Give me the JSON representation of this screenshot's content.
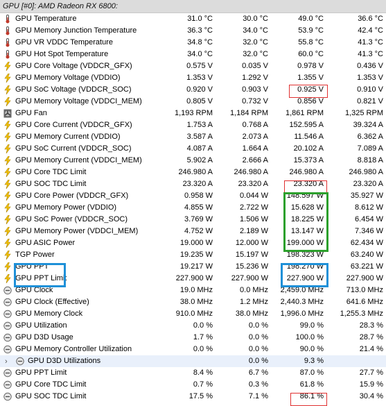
{
  "header": {
    "title": "GPU [#0]: AMD Radeon RX 6800:"
  },
  "rows": [
    {
      "icon": "thermometer-icon",
      "label": "GPU Temperature",
      "v": [
        "31.0 °C",
        "30.0 °C",
        "49.0 °C",
        "36.6 °C"
      ]
    },
    {
      "icon": "thermometer-icon",
      "label": "GPU Memory Junction Temperature",
      "v": [
        "36.3 °C",
        "34.0 °C",
        "53.9 °C",
        "42.4 °C"
      ]
    },
    {
      "icon": "thermometer-icon",
      "label": "GPU VR VDDC Temperature",
      "v": [
        "34.8 °C",
        "32.0 °C",
        "55.8 °C",
        "41.3 °C"
      ]
    },
    {
      "icon": "thermometer-icon",
      "label": "GPU Hot Spot Temperature",
      "v": [
        "34.0 °C",
        "32.0 °C",
        "60.0 °C",
        "41.3 °C"
      ]
    },
    {
      "icon": "lightning-icon",
      "label": "GPU Core Voltage (VDDCR_GFX)",
      "v": [
        "0.575 V",
        "0.035 V",
        "0.978 V",
        "0.436 V"
      ]
    },
    {
      "icon": "lightning-icon",
      "label": "GPU Memory Voltage (VDDIO)",
      "v": [
        "1.353 V",
        "1.292 V",
        "1.355 V",
        "1.353 V"
      ]
    },
    {
      "icon": "lightning-icon",
      "label": "GPU SoC Voltage (VDDCR_SOC)",
      "v": [
        "0.920 V",
        "0.903 V",
        "0.925 V",
        "0.910 V"
      ]
    },
    {
      "icon": "lightning-icon",
      "label": "GPU Memory Voltage (VDDCI_MEM)",
      "v": [
        "0.805 V",
        "0.732 V",
        "0.856 V",
        "0.821 V"
      ]
    },
    {
      "icon": "fan-icon",
      "label": "GPU Fan",
      "v": [
        "1,193 RPM",
        "1,184 RPM",
        "1,861 RPM",
        "1,325 RPM"
      ]
    },
    {
      "icon": "lightning-icon",
      "label": "GPU Core Current (VDDCR_GFX)",
      "v": [
        "1.753 A",
        "0.768 A",
        "152.595 A",
        "39.324 A"
      ]
    },
    {
      "icon": "lightning-icon",
      "label": "GPU Memory Current (VDDIO)",
      "v": [
        "3.587 A",
        "2.073 A",
        "11.546 A",
        "6.362 A"
      ]
    },
    {
      "icon": "lightning-icon",
      "label": "GPU SoC Current (VDDCR_SOC)",
      "v": [
        "4.087 A",
        "1.664 A",
        "20.102 A",
        "7.089 A"
      ]
    },
    {
      "icon": "lightning-icon",
      "label": "GPU Memory Current (VDDCI_MEM)",
      "v": [
        "5.902 A",
        "2.666 A",
        "15.373 A",
        "8.818 A"
      ]
    },
    {
      "icon": "lightning-icon",
      "label": "GPU Core TDC Limit",
      "v": [
        "246.980 A",
        "246.980 A",
        "246.980 A",
        "246.980 A"
      ]
    },
    {
      "icon": "lightning-icon",
      "label": "GPU SOC TDC Limit",
      "v": [
        "23.320 A",
        "23.320 A",
        "23.320 A",
        "23.320 A"
      ]
    },
    {
      "icon": "lightning-icon",
      "label": "GPU Core Power (VDDCR_GFX)",
      "v": [
        "0.958 W",
        "0.044 W",
        "148.597 W",
        "35.927 W"
      ]
    },
    {
      "icon": "lightning-icon",
      "label": "GPU Memory Power (VDDIO)",
      "v": [
        "4.855 W",
        "2.722 W",
        "15.628 W",
        "8.612 W"
      ]
    },
    {
      "icon": "lightning-icon",
      "label": "GPU SoC Power (VDDCR_SOC)",
      "v": [
        "3.769 W",
        "1.506 W",
        "18.225 W",
        "6.454 W"
      ]
    },
    {
      "icon": "lightning-icon",
      "label": "GPU Memory Power (VDDCI_MEM)",
      "v": [
        "4.752 W",
        "2.189 W",
        "13.147 W",
        "7.346 W"
      ]
    },
    {
      "icon": "lightning-icon",
      "label": "GPU ASIC Power",
      "v": [
        "19.000 W",
        "12.000 W",
        "199.000 W",
        "62.434 W"
      ]
    },
    {
      "icon": "lightning-icon",
      "label": "TGP Power",
      "v": [
        "19.235 W",
        "15.197 W",
        "198.323 W",
        "63.240 W"
      ]
    },
    {
      "icon": "lightning-icon",
      "label": "GPU PPT",
      "v": [
        "19.217 W",
        "15.236 W",
        "198.270 W",
        "63.221 W"
      ]
    },
    {
      "icon": "lightning-icon",
      "label": "GPU PPT Limit",
      "v": [
        "227.900 W",
        "227.900 W",
        "227.900 W",
        "227.900 W"
      ]
    },
    {
      "icon": "clock-icon",
      "label": "GPU Clock",
      "v": [
        "19.0 MHz",
        "0.0 MHz",
        "2,459.0 MHz",
        "713.0 MHz"
      ]
    },
    {
      "icon": "clock-icon",
      "label": "GPU Clock (Effective)",
      "v": [
        "38.0 MHz",
        "1.2 MHz",
        "2,440.3 MHz",
        "641.6 MHz"
      ]
    },
    {
      "icon": "clock-icon",
      "label": "GPU Memory Clock",
      "v": [
        "910.0 MHz",
        "38.0 MHz",
        "1,996.0 MHz",
        "1,255.3 MHz"
      ]
    },
    {
      "icon": "gauge-icon",
      "label": "GPU Utilization",
      "v": [
        "0.0 %",
        "0.0 %",
        "99.0 %",
        "28.3 %"
      ]
    },
    {
      "icon": "gauge-icon",
      "label": "GPU D3D Usage",
      "v": [
        "1.7 %",
        "0.0 %",
        "100.0 %",
        "28.7 %"
      ]
    },
    {
      "icon": "gauge-icon",
      "label": "GPU Memory Controller Utilization",
      "v": [
        "0.0 %",
        "0.0 %",
        "90.0 %",
        "21.4 %"
      ]
    },
    {
      "icon": "gauge-icon",
      "label": "GPU D3D Utilizations",
      "v": [
        "",
        "0.0 %",
        "9.3 %",
        ""
      ],
      "child": true,
      "twisty": "›"
    },
    {
      "icon": "gauge-icon",
      "label": "GPU PPT Limit",
      "v": [
        "8.4 %",
        "6.7 %",
        "87.0 %",
        "27.7 %"
      ]
    },
    {
      "icon": "gauge-icon",
      "label": "GPU Core TDC Limit",
      "v": [
        "0.7 %",
        "0.3 %",
        "61.8 %",
        "15.9 %"
      ]
    },
    {
      "icon": "gauge-icon",
      "label": "GPU SOC TDC Limit",
      "v": [
        "17.5 %",
        "7.1 %",
        "86.1 %",
        "30.4 %"
      ]
    }
  ],
  "colors": {
    "red_box": "#e03030",
    "green_box": "#2ca02c",
    "blue_box": "#1e90d8"
  }
}
